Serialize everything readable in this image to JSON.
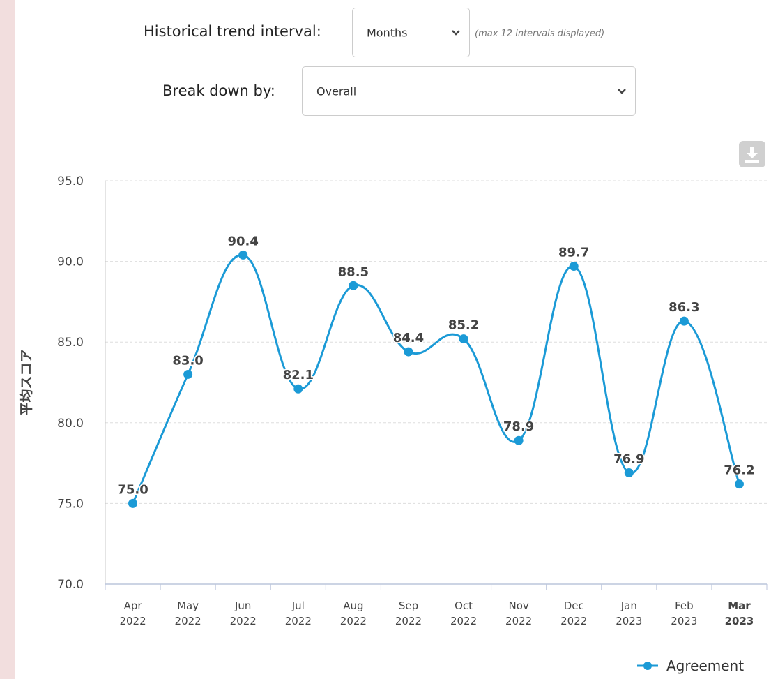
{
  "controls": {
    "interval_label": "Historical trend interval:",
    "interval_value": "Months",
    "interval_hint": "(max 12 intervals displayed)",
    "breakdown_label": "Break down by:",
    "breakdown_value": "Overall"
  },
  "icons": {
    "select_chevron": "chevron-down-icon",
    "download": "download-icon"
  },
  "colors": {
    "series": "#1b9ad6",
    "left_strip": "#f2dede",
    "download_button": "#d0d0d0"
  },
  "chart_data": {
    "type": "line",
    "smoothed": true,
    "ylabel": "平均スコア",
    "ylim": [
      70.0,
      95.0
    ],
    "yticks": [
      "70.0",
      "75.0",
      "80.0",
      "85.0",
      "90.0",
      "95.0"
    ],
    "grid": true,
    "legend_position": "bottom-right",
    "categories": [
      [
        "Apr",
        "2022"
      ],
      [
        "May",
        "2022"
      ],
      [
        "Jun",
        "2022"
      ],
      [
        "Jul",
        "2022"
      ],
      [
        "Aug",
        "2022"
      ],
      [
        "Sep",
        "2022"
      ],
      [
        "Oct",
        "2022"
      ],
      [
        "Nov",
        "2022"
      ],
      [
        "Dec",
        "2022"
      ],
      [
        "Jan",
        "2023"
      ],
      [
        "Feb",
        "2023"
      ],
      [
        "Mar",
        "2023"
      ]
    ],
    "emphasized_category": "Mar 2023",
    "series": [
      {
        "name": "Agreement",
        "values": [
          75.0,
          83.0,
          90.4,
          82.1,
          88.5,
          84.4,
          85.2,
          78.9,
          89.7,
          76.9,
          86.3,
          76.2
        ],
        "labels": [
          "75.0",
          "83.0",
          "90.4",
          "82.1",
          "88.5",
          "84.4",
          "85.2",
          "78.9",
          "89.7",
          "76.9",
          "86.3",
          "76.2"
        ]
      }
    ]
  }
}
